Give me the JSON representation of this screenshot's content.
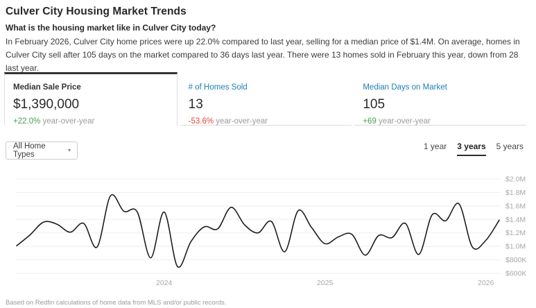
{
  "page": {
    "title": "Culver City Housing Market Trends",
    "subtitle": "What is the housing market like in Culver City today?",
    "summary": "In February 2026, Culver City home prices were up 22.0% compared to last year, selling for a median price of $1.4M. On average, homes in Culver City sell after 105 days on the market compared to 36 days last year. There were 13 homes sold in February this year, down from 28 last year.",
    "footnote": "Based on Redfin calculations of home data from MLS and/or public records."
  },
  "colors": {
    "positive_delta": "#4a9e4f",
    "negative_delta": "#e0493a",
    "link_blue": "#1f7db4",
    "selected_tab_border": "#333333"
  },
  "stats": [
    {
      "label": "Median Sale Price",
      "value": "$1,390,000",
      "delta": "+22.0%",
      "delta_color": "#4a9e4f",
      "suffix": " year-over-year",
      "selected": true
    },
    {
      "label": "# of Homes Sold",
      "value": "13",
      "delta": "-53.6%",
      "delta_color": "#e0493a",
      "suffix": " year-over-year",
      "selected": false
    },
    {
      "label": "Median Days on Market",
      "value": "105",
      "delta": "+69",
      "delta_color": "#4a9e4f",
      "suffix": " year-over-year",
      "selected": false
    }
  ],
  "controls": {
    "home_type_filter": {
      "value": "All Home Types",
      "caret": "▾"
    },
    "range_options": [
      {
        "label": "1 year",
        "selected": false
      },
      {
        "label": "3 years",
        "selected": true
      },
      {
        "label": "5 years",
        "selected": false
      }
    ]
  },
  "chart_data": {
    "type": "line",
    "title": "Median Sale Price",
    "xlabel": "",
    "ylabel": "Median Sale Price",
    "grid": true,
    "line_color": "#1c1c1c",
    "ylim_m": [
      0.6,
      2.0
    ],
    "y_ticks": [
      "$2.0M",
      "$1.8M",
      "$1.6M",
      "$1.4M",
      "$1.2M",
      "$1.0M",
      "$800K",
      "$600K"
    ],
    "x_ticks": [
      "2024",
      "2025",
      "2026"
    ],
    "months": [
      "Feb 2023",
      "Mar 2023",
      "Apr 2023",
      "May 2023",
      "Jun 2023",
      "Jul 2023",
      "Aug 2023",
      "Sep 2023",
      "Oct 2023",
      "Nov 2023",
      "Dec 2023",
      "Jan 2024",
      "Feb 2024",
      "Mar 2024",
      "Apr 2024",
      "May 2024",
      "Jun 2024",
      "Jul 2024",
      "Aug 2024",
      "Sep 2024",
      "Oct 2024",
      "Nov 2024",
      "Dec 2024",
      "Jan 2025",
      "Feb 2025",
      "Mar 2025",
      "Apr 2025",
      "May 2025",
      "Jun 2025",
      "Jul 2025",
      "Aug 2025",
      "Sep 2025",
      "Oct 2025",
      "Nov 2025",
      "Dec 2025",
      "Jan 2026",
      "Feb 2026"
    ],
    "series": [
      {
        "name": "Median Sale Price ($M)",
        "values_m": [
          1.01,
          1.17,
          1.36,
          1.33,
          1.21,
          1.34,
          0.99,
          1.75,
          1.52,
          1.51,
          0.83,
          1.51,
          0.7,
          1.07,
          1.29,
          1.26,
          1.58,
          1.32,
          1.2,
          1.37,
          0.92,
          1.53,
          1.28,
          1.04,
          1.14,
          1.18,
          0.87,
          1.16,
          1.13,
          1.34,
          0.88,
          1.47,
          1.38,
          1.63,
          0.99,
          1.09,
          1.39
        ]
      }
    ]
  }
}
